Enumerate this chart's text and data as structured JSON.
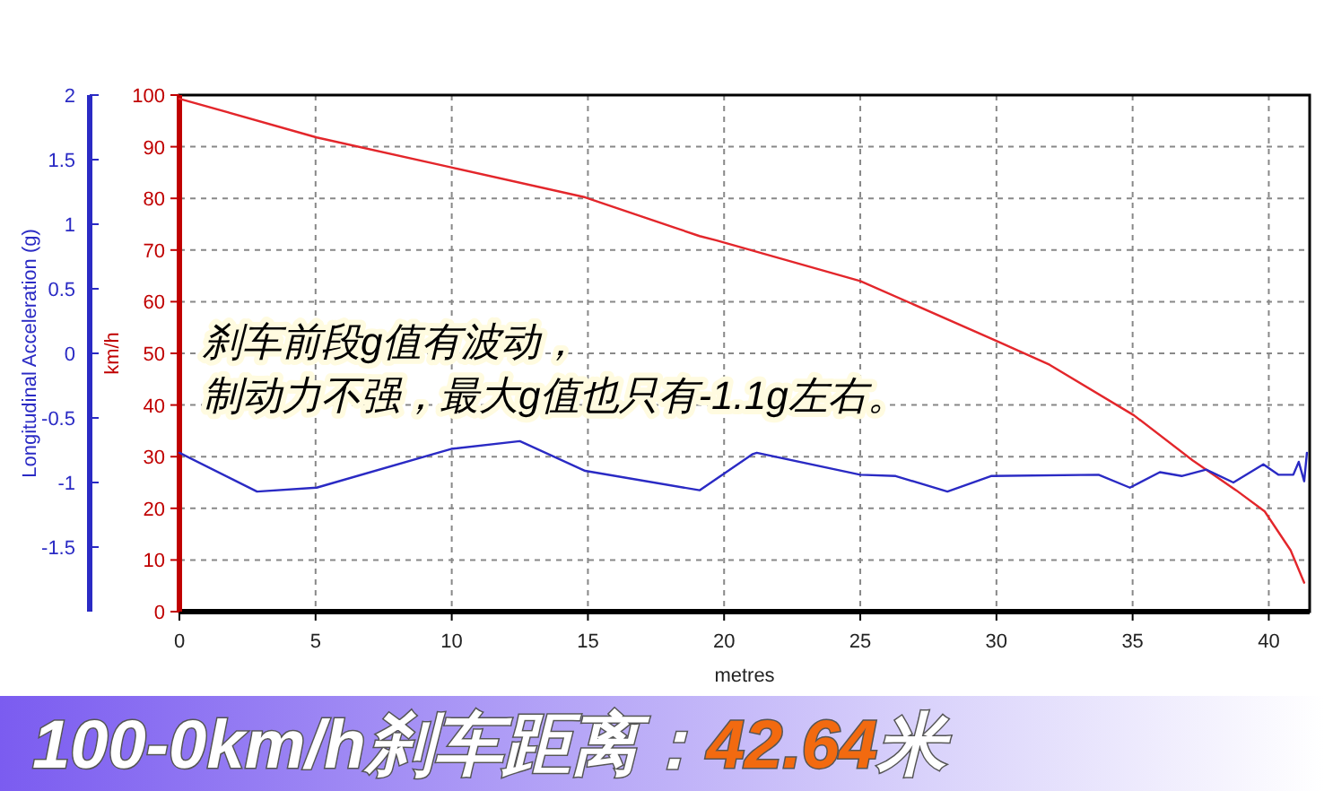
{
  "chart_data": {
    "type": "line",
    "title": "100-0km/h刹车距离：42.64米",
    "xlabel": "metres",
    "ylabel": "km/h",
    "y2label": "Longitudinal Acceleration (g)",
    "annotations": [
      "刹车前段g值有波动，",
      "制动力不强，最大g值也只有-1.1g左右。"
    ],
    "xlim": [
      0,
      41.5
    ],
    "xticks": [
      0,
      5,
      10,
      15,
      20,
      25,
      30,
      35,
      40
    ],
    "ylim": [
      0,
      100
    ],
    "yticks": [
      0,
      10,
      20,
      30,
      40,
      50,
      60,
      70,
      80,
      90,
      100
    ],
    "y2lim": [
      -2,
      2
    ],
    "y2ticks": [
      -1.5,
      -1,
      -0.5,
      0,
      0.5,
      1,
      1.5,
      2
    ],
    "grid": true,
    "marker": "none",
    "line_style": "solid",
    "series": [
      {
        "color": "#e3262b",
        "x": [
          0,
          5.04,
          9.98,
          14.9,
          19.1,
          19.7,
          25.0,
          30.0,
          31.95,
          35.05,
          37.2,
          38.8,
          39.85,
          40.8,
          41.3
        ],
        "values": [
          99.3,
          91.8,
          86.0,
          80.2,
          72.7,
          71.9,
          64.0,
          52.4,
          47.8,
          38.0,
          29.3,
          23.5,
          19.4,
          11.9,
          5.6
        ]
      },
      {
        "color": "#2a2ac4",
        "axis": "y2",
        "x": [
          0,
          2.85,
          5.04,
          9.98,
          12.5,
          14.9,
          19.1,
          21.05,
          21.2,
          25.0,
          26.3,
          28.2,
          29.8,
          33.75,
          34.9,
          36.0,
          36.8,
          37.7,
          38.7,
          39.8,
          40.35,
          40.9,
          41.1,
          41.3,
          41.4
        ],
        "values": [
          -0.77,
          -1.07,
          -1.04,
          -0.74,
          -0.68,
          -0.91,
          -1.06,
          -0.78,
          -0.77,
          -0.94,
          -0.95,
          -1.07,
          -0.95,
          -0.94,
          -1.04,
          -0.92,
          -0.95,
          -0.9,
          -1.0,
          -0.86,
          -0.94,
          -0.94,
          -0.84,
          -0.99,
          -0.77
        ]
      }
    ]
  }
}
